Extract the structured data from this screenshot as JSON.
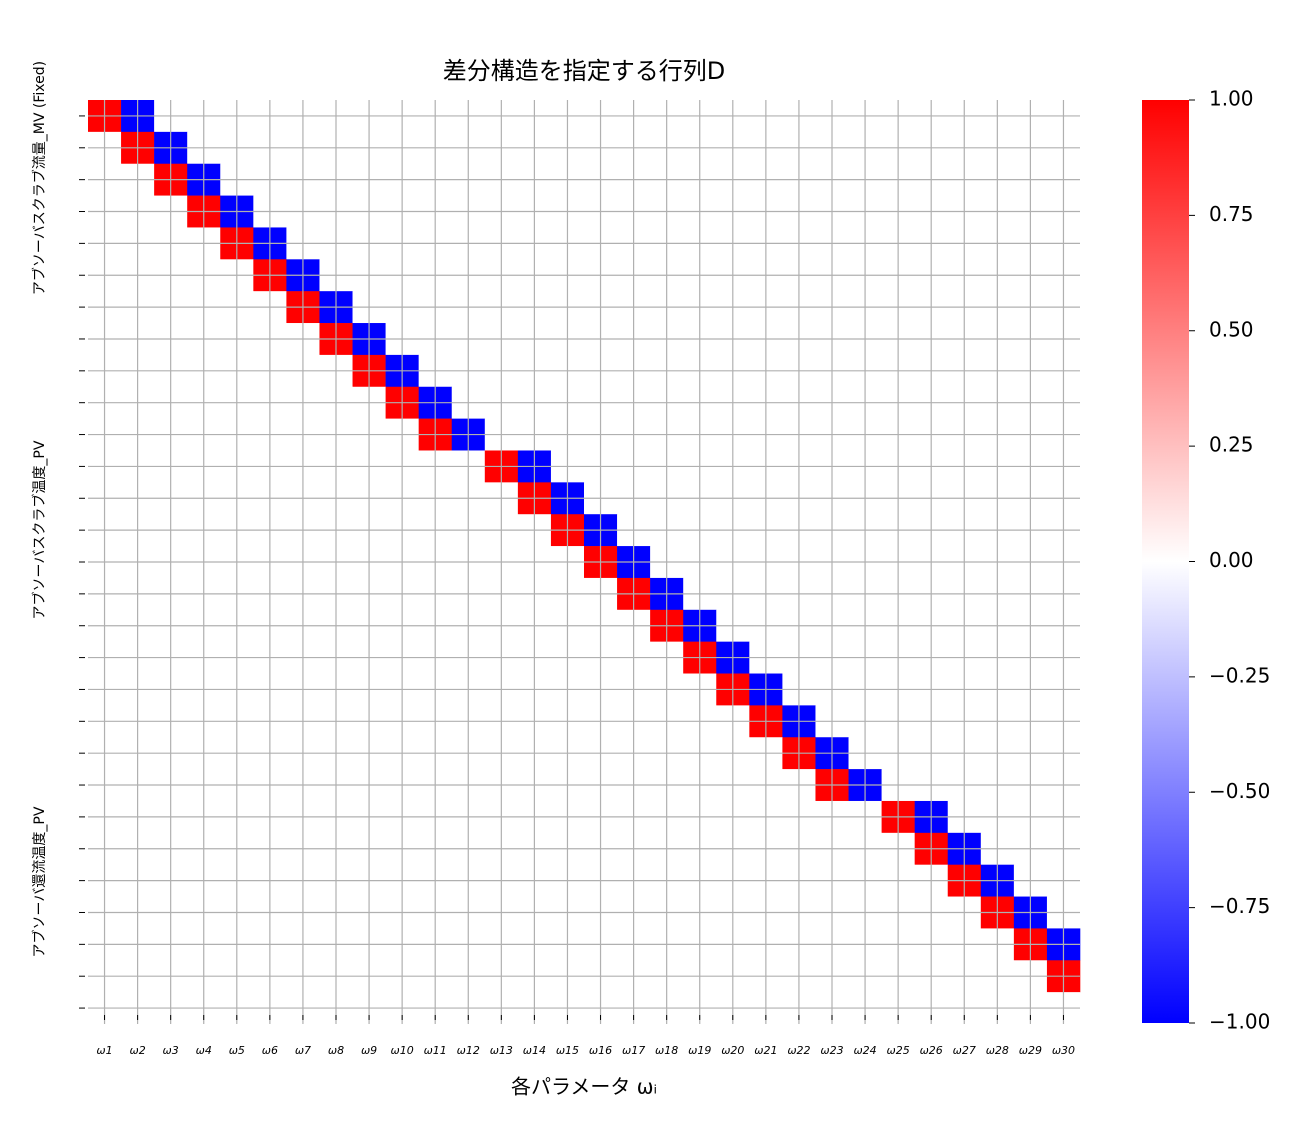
{
  "chart_data": {
    "type": "heatmap",
    "title": "差分構造を指定する行列D",
    "xlabel": "各パラメータ ωᵢ",
    "categories": [
      "ω1",
      "ω2",
      "ω3",
      "ω4",
      "ω5",
      "ω6",
      "ω7",
      "ω8",
      "ω9",
      "ω10",
      "ω11",
      "ω12",
      "ω13",
      "ω14",
      "ω15",
      "ω16",
      "ω17",
      "ω18",
      "ω19",
      "ω20",
      "ω21",
      "ω22",
      "ω23",
      "ω24",
      "ω25",
      "ω26",
      "ω27",
      "ω28",
      "ω29",
      "ω30"
    ],
    "y_group_labels": [
      "アブソーバスクラブ流量_MV (Fixed)",
      "アブソーバスクラブ温度_PV",
      "アブソーバ還流温度_PV"
    ],
    "values": [
      [
        1,
        -1,
        0,
        0,
        0,
        0,
        0,
        0,
        0,
        0,
        0,
        0,
        0,
        0,
        0,
        0,
        0,
        0,
        0,
        0,
        0,
        0,
        0,
        0,
        0,
        0,
        0,
        0,
        0,
        0
      ],
      [
        0,
        1,
        -1,
        0,
        0,
        0,
        0,
        0,
        0,
        0,
        0,
        0,
        0,
        0,
        0,
        0,
        0,
        0,
        0,
        0,
        0,
        0,
        0,
        0,
        0,
        0,
        0,
        0,
        0,
        0
      ],
      [
        0,
        0,
        1,
        -1,
        0,
        0,
        0,
        0,
        0,
        0,
        0,
        0,
        0,
        0,
        0,
        0,
        0,
        0,
        0,
        0,
        0,
        0,
        0,
        0,
        0,
        0,
        0,
        0,
        0,
        0
      ],
      [
        0,
        0,
        0,
        1,
        -1,
        0,
        0,
        0,
        0,
        0,
        0,
        0,
        0,
        0,
        0,
        0,
        0,
        0,
        0,
        0,
        0,
        0,
        0,
        0,
        0,
        0,
        0,
        0,
        0,
        0
      ],
      [
        0,
        0,
        0,
        0,
        1,
        -1,
        0,
        0,
        0,
        0,
        0,
        0,
        0,
        0,
        0,
        0,
        0,
        0,
        0,
        0,
        0,
        0,
        0,
        0,
        0,
        0,
        0,
        0,
        0,
        0
      ],
      [
        0,
        0,
        0,
        0,
        0,
        1,
        -1,
        0,
        0,
        0,
        0,
        0,
        0,
        0,
        0,
        0,
        0,
        0,
        0,
        0,
        0,
        0,
        0,
        0,
        0,
        0,
        0,
        0,
        0,
        0
      ],
      [
        0,
        0,
        0,
        0,
        0,
        0,
        1,
        -1,
        0,
        0,
        0,
        0,
        0,
        0,
        0,
        0,
        0,
        0,
        0,
        0,
        0,
        0,
        0,
        0,
        0,
        0,
        0,
        0,
        0,
        0
      ],
      [
        0,
        0,
        0,
        0,
        0,
        0,
        0,
        1,
        -1,
        0,
        0,
        0,
        0,
        0,
        0,
        0,
        0,
        0,
        0,
        0,
        0,
        0,
        0,
        0,
        0,
        0,
        0,
        0,
        0,
        0
      ],
      [
        0,
        0,
        0,
        0,
        0,
        0,
        0,
        0,
        1,
        -1,
        0,
        0,
        0,
        0,
        0,
        0,
        0,
        0,
        0,
        0,
        0,
        0,
        0,
        0,
        0,
        0,
        0,
        0,
        0,
        0
      ],
      [
        0,
        0,
        0,
        0,
        0,
        0,
        0,
        0,
        0,
        1,
        -1,
        0,
        0,
        0,
        0,
        0,
        0,
        0,
        0,
        0,
        0,
        0,
        0,
        0,
        0,
        0,
        0,
        0,
        0,
        0
      ],
      [
        0,
        0,
        0,
        0,
        0,
        0,
        0,
        0,
        0,
        0,
        1,
        -1,
        0,
        0,
        0,
        0,
        0,
        0,
        0,
        0,
        0,
        0,
        0,
        0,
        0,
        0,
        0,
        0,
        0,
        0
      ],
      [
        0,
        0,
        0,
        0,
        0,
        0,
        0,
        0,
        0,
        0,
        0,
        0,
        1,
        -1,
        0,
        0,
        0,
        0,
        0,
        0,
        0,
        0,
        0,
        0,
        0,
        0,
        0,
        0,
        0,
        0
      ],
      [
        0,
        0,
        0,
        0,
        0,
        0,
        0,
        0,
        0,
        0,
        0,
        0,
        0,
        1,
        -1,
        0,
        0,
        0,
        0,
        0,
        0,
        0,
        0,
        0,
        0,
        0,
        0,
        0,
        0,
        0
      ],
      [
        0,
        0,
        0,
        0,
        0,
        0,
        0,
        0,
        0,
        0,
        0,
        0,
        0,
        0,
        1,
        -1,
        0,
        0,
        0,
        0,
        0,
        0,
        0,
        0,
        0,
        0,
        0,
        0,
        0,
        0
      ],
      [
        0,
        0,
        0,
        0,
        0,
        0,
        0,
        0,
        0,
        0,
        0,
        0,
        0,
        0,
        0,
        1,
        -1,
        0,
        0,
        0,
        0,
        0,
        0,
        0,
        0,
        0,
        0,
        0,
        0,
        0
      ],
      [
        0,
        0,
        0,
        0,
        0,
        0,
        0,
        0,
        0,
        0,
        0,
        0,
        0,
        0,
        0,
        0,
        1,
        -1,
        0,
        0,
        0,
        0,
        0,
        0,
        0,
        0,
        0,
        0,
        0,
        0
      ],
      [
        0,
        0,
        0,
        0,
        0,
        0,
        0,
        0,
        0,
        0,
        0,
        0,
        0,
        0,
        0,
        0,
        0,
        1,
        -1,
        0,
        0,
        0,
        0,
        0,
        0,
        0,
        0,
        0,
        0,
        0
      ],
      [
        0,
        0,
        0,
        0,
        0,
        0,
        0,
        0,
        0,
        0,
        0,
        0,
        0,
        0,
        0,
        0,
        0,
        0,
        1,
        -1,
        0,
        0,
        0,
        0,
        0,
        0,
        0,
        0,
        0,
        0
      ],
      [
        0,
        0,
        0,
        0,
        0,
        0,
        0,
        0,
        0,
        0,
        0,
        0,
        0,
        0,
        0,
        0,
        0,
        0,
        0,
        1,
        -1,
        0,
        0,
        0,
        0,
        0,
        0,
        0,
        0,
        0
      ],
      [
        0,
        0,
        0,
        0,
        0,
        0,
        0,
        0,
        0,
        0,
        0,
        0,
        0,
        0,
        0,
        0,
        0,
        0,
        0,
        0,
        1,
        -1,
        0,
        0,
        0,
        0,
        0,
        0,
        0,
        0
      ],
      [
        0,
        0,
        0,
        0,
        0,
        0,
        0,
        0,
        0,
        0,
        0,
        0,
        0,
        0,
        0,
        0,
        0,
        0,
        0,
        0,
        0,
        1,
        -1,
        0,
        0,
        0,
        0,
        0,
        0,
        0
      ],
      [
        0,
        0,
        0,
        0,
        0,
        0,
        0,
        0,
        0,
        0,
        0,
        0,
        0,
        0,
        0,
        0,
        0,
        0,
        0,
        0,
        0,
        0,
        1,
        -1,
        0,
        0,
        0,
        0,
        0,
        0
      ],
      [
        0,
        0,
        0,
        0,
        0,
        0,
        0,
        0,
        0,
        0,
        0,
        0,
        0,
        0,
        0,
        0,
        0,
        0,
        0,
        0,
        0,
        0,
        0,
        0,
        1,
        -1,
        0,
        0,
        0,
        0
      ],
      [
        0,
        0,
        0,
        0,
        0,
        0,
        0,
        0,
        0,
        0,
        0,
        0,
        0,
        0,
        0,
        0,
        0,
        0,
        0,
        0,
        0,
        0,
        0,
        0,
        0,
        1,
        -1,
        0,
        0,
        0
      ],
      [
        0,
        0,
        0,
        0,
        0,
        0,
        0,
        0,
        0,
        0,
        0,
        0,
        0,
        0,
        0,
        0,
        0,
        0,
        0,
        0,
        0,
        0,
        0,
        0,
        0,
        0,
        1,
        -1,
        0,
        0
      ],
      [
        0,
        0,
        0,
        0,
        0,
        0,
        0,
        0,
        0,
        0,
        0,
        0,
        0,
        0,
        0,
        0,
        0,
        0,
        0,
        0,
        0,
        0,
        0,
        0,
        0,
        0,
        0,
        1,
        -1,
        0
      ],
      [
        0,
        0,
        0,
        0,
        0,
        0,
        0,
        0,
        0,
        0,
        0,
        0,
        0,
        0,
        0,
        0,
        0,
        0,
        0,
        0,
        0,
        0,
        0,
        0,
        0,
        0,
        0,
        0,
        1,
        -1
      ],
      [
        0,
        0,
        0,
        0,
        0,
        0,
        0,
        0,
        0,
        0,
        0,
        0,
        0,
        0,
        0,
        0,
        0,
        0,
        0,
        0,
        0,
        0,
        0,
        0,
        0,
        0,
        0,
        0,
        0,
        1
      ],
      [
        0,
        0,
        0,
        0,
        0,
        0,
        0,
        0,
        0,
        0,
        0,
        0,
        0,
        0,
        0,
        0,
        0,
        0,
        0,
        0,
        0,
        0,
        0,
        0,
        0,
        0,
        0,
        0,
        0,
        0
      ]
    ],
    "colormap": [
      "#0000ff",
      "#ffffff",
      "#ff0000"
    ],
    "clim": [
      -1,
      1
    ],
    "cticks": [
      {
        "value": 1,
        "label": "1.00"
      },
      {
        "value": 0.75,
        "label": "0.75"
      },
      {
        "value": 0.5,
        "label": "0.50"
      },
      {
        "value": 0.25,
        "label": "0.25"
      },
      {
        "value": 0,
        "label": "0.00"
      },
      {
        "value": -0.25,
        "label": "−0.25"
      },
      {
        "value": -0.5,
        "label": "−0.50"
      },
      {
        "value": -0.75,
        "label": "−0.75"
      },
      {
        "value": -1,
        "label": "−1.00"
      }
    ],
    "grid": true
  }
}
